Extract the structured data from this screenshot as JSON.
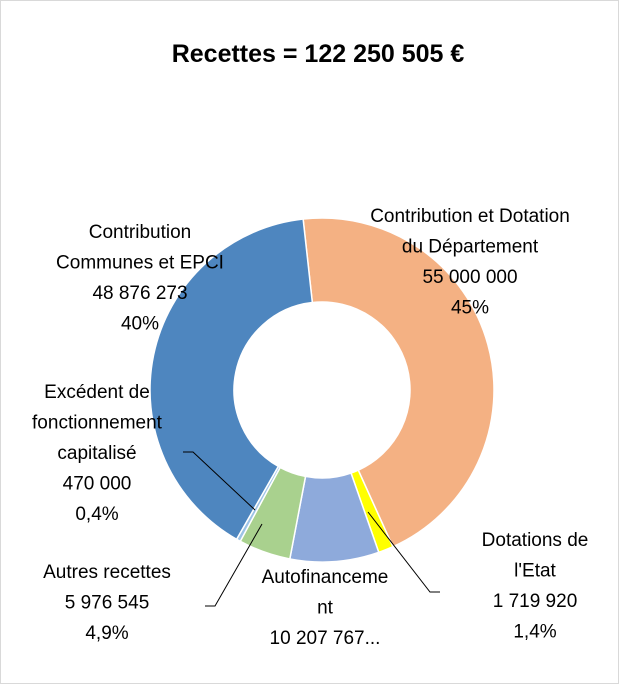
{
  "chart_data": {
    "type": "donut",
    "title": "Recettes = 122 250 505 €",
    "categories": [
      "Contribution et Dotation du Département",
      "Dotations de l'Etat",
      "Autofinancement",
      "Autres recettes",
      "Excédent de fonctionnement capitalisé",
      "Contribution Communes et EPCI"
    ],
    "values": [
      55000000,
      1719920,
      10207767,
      5976545,
      470000,
      48876273
    ],
    "value_labels": [
      "55 000 000",
      "1 719 920",
      "10 207 767...",
      "5 976 545",
      "470 000",
      "48 876 273"
    ],
    "percents": [
      45,
      1.4,
      null,
      4.9,
      0.4,
      40
    ],
    "percent_labels": [
      "45%",
      "1,4%",
      null,
      "4,9%",
      "0,4%",
      "40%"
    ],
    "colors": [
      "#f4b183",
      "#ffff00",
      "#8eaadb",
      "#a9d18e",
      "#9dc3e6",
      "#4e86bf"
    ]
  }
}
